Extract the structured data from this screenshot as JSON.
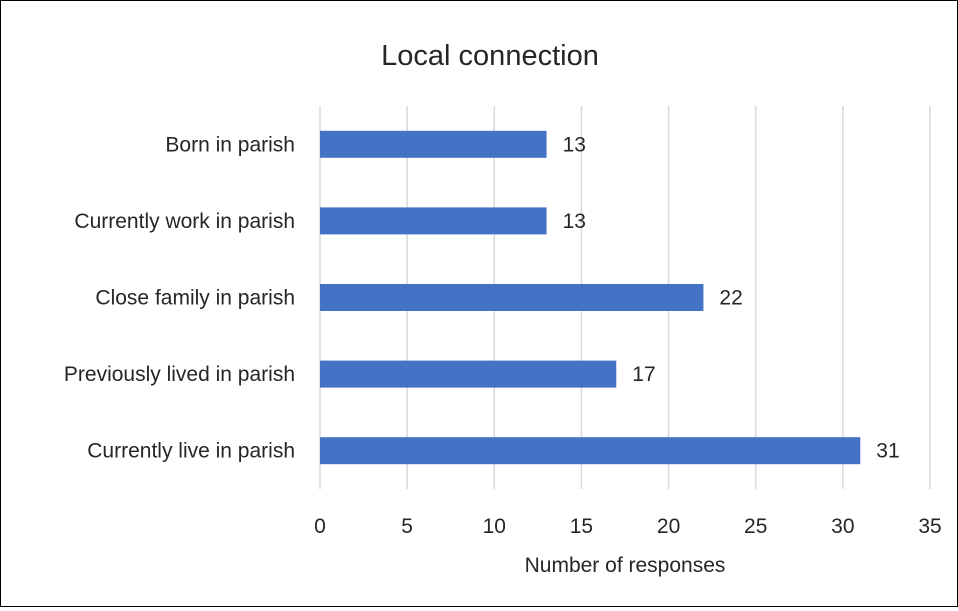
{
  "chart_data": {
    "type": "bar",
    "orientation": "horizontal",
    "title": "Local connection",
    "xlabel": "Number of responses",
    "ylabel": "",
    "categories": [
      "Born in parish",
      "Currently work in parish",
      "Close family in parish",
      "Previously lived in parish",
      "Currently live in parish"
    ],
    "values": [
      13,
      13,
      22,
      17,
      31
    ],
    "xlim": [
      0,
      35
    ],
    "xticks": [
      0,
      5,
      10,
      15,
      20,
      25,
      30,
      35
    ],
    "grid": true,
    "legend": "none",
    "bar_color": "#4472C4",
    "grid_color": "#D9D9D9"
  }
}
